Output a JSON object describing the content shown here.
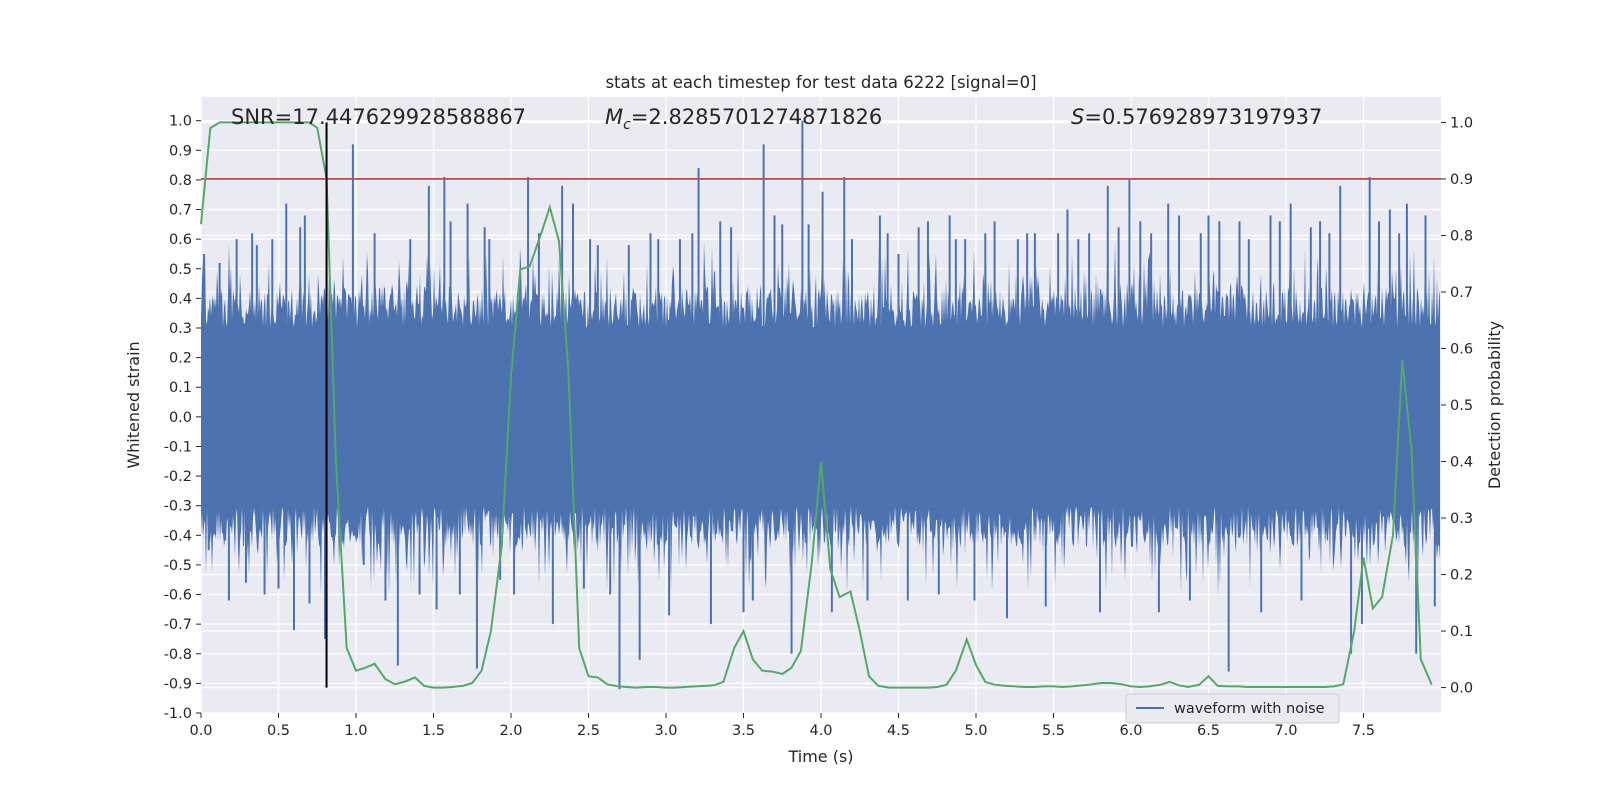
{
  "chart_data": {
    "type": "line",
    "title": "stats at each timestep for test data 6222 [signal=0]",
    "xlabel": "Time (s)",
    "ylabel": "Whitened strain",
    "y2label": "Detection probability",
    "xlim": [
      0,
      8
    ],
    "ylim": [
      -1.0,
      1.08
    ],
    "y2lim": [
      -0.045,
      1.045
    ],
    "xticks": [
      "0.0",
      "0.5",
      "1.0",
      "1.5",
      "2.0",
      "2.5",
      "3.0",
      "3.5",
      "4.0",
      "4.5",
      "5.0",
      "5.5",
      "6.0",
      "6.5",
      "7.0",
      "7.5"
    ],
    "yticks": [
      "-1.0",
      "-0.9",
      "-0.8",
      "-0.7",
      "-0.6",
      "-0.5",
      "-0.4",
      "-0.3",
      "-0.2",
      "-0.1",
      "0.0",
      "0.1",
      "0.2",
      "0.3",
      "0.4",
      "0.5",
      "0.6",
      "0.7",
      "0.8",
      "0.9",
      "1.0"
    ],
    "y2ticks": [
      "0.0",
      "0.1",
      "0.2",
      "0.3",
      "0.4",
      "0.5",
      "0.6",
      "0.7",
      "0.8",
      "0.9",
      "1.0"
    ],
    "grid": true,
    "legend_position": "lower-right",
    "annotations": {
      "snr": "SNR=17.447629928588867",
      "mc_symbol": "M",
      "mc_sub": "c",
      "mc_value": "=2.8285701274871826",
      "s_symbol": "S",
      "s_value": "=0.576928973197937"
    },
    "threshold_y2": 0.9,
    "marker_time": 0.81,
    "series": [
      {
        "name": "waveform with noise",
        "axis": "left",
        "color": "#4c72b0",
        "style": "noise",
        "sample_rate": 2048,
        "envelope": 0.45,
        "extremes_t": [
          0.02,
          0.05,
          0.12,
          0.18,
          0.23,
          0.29,
          0.33,
          0.36,
          0.41,
          0.46,
          0.5,
          0.55,
          0.6,
          0.64,
          0.67,
          0.7,
          0.8,
          0.98,
          1.05,
          1.12,
          1.19,
          1.27,
          1.35,
          1.41,
          1.47,
          1.52,
          1.57,
          1.61,
          1.67,
          1.72,
          1.78,
          1.83,
          1.86,
          1.93,
          2.02,
          2.11,
          2.18,
          2.27,
          2.33,
          2.4,
          2.47,
          2.51,
          2.56,
          2.64,
          2.7,
          2.76,
          2.83,
          2.9,
          2.95,
          3.02,
          3.09,
          3.17,
          3.21,
          3.29,
          3.35,
          3.42,
          3.5,
          3.56,
          3.63,
          3.7,
          3.75,
          3.81,
          3.88,
          3.92,
          4.01,
          4.07,
          4.15,
          4.2,
          4.3,
          4.38,
          4.43,
          4.5,
          4.56,
          4.63,
          4.69,
          4.76,
          4.83,
          4.87,
          4.93,
          4.99,
          5.06,
          5.12,
          5.2,
          5.27,
          5.33,
          5.38,
          5.45,
          5.53,
          5.59,
          5.66,
          5.73,
          5.8,
          5.85,
          5.92,
          5.99,
          6.06,
          6.13,
          6.18,
          6.24,
          6.31,
          6.38,
          6.45,
          6.5,
          6.57,
          6.63,
          6.7,
          6.76,
          6.84,
          6.9,
          6.96,
          7.03,
          7.1,
          7.16,
          7.22,
          7.28,
          7.35,
          7.42,
          7.49,
          7.54,
          7.6,
          7.67,
          7.73,
          7.78,
          7.84,
          7.9,
          7.96
        ],
        "extremes_v": [
          0.55,
          -0.45,
          0.52,
          -0.62,
          0.6,
          -0.56,
          0.62,
          0.58,
          -0.6,
          0.6,
          -0.58,
          0.72,
          -0.72,
          0.64,
          0.68,
          -0.63,
          -0.75,
          0.92,
          -0.5,
          0.62,
          -0.62,
          -0.84,
          0.6,
          -0.6,
          0.78,
          -0.65,
          0.81,
          0.66,
          -0.6,
          0.72,
          -0.85,
          0.64,
          0.6,
          -0.55,
          -0.6,
          0.81,
          0.62,
          -0.7,
          0.78,
          0.72,
          -0.58,
          0.6,
          0.58,
          -0.6,
          -0.92,
          0.58,
          -0.82,
          0.62,
          0.6,
          -0.67,
          0.6,
          0.62,
          0.84,
          -0.7,
          0.66,
          0.64,
          -0.66,
          -0.62,
          0.92,
          0.68,
          0.65,
          -0.8,
          1.0,
          0.65,
          0.76,
          -0.66,
          0.81,
          0.6,
          -0.62,
          0.68,
          0.62,
          0.55,
          -0.62,
          0.64,
          0.66,
          -0.6,
          0.68,
          0.6,
          0.6,
          -0.62,
          0.62,
          0.66,
          -0.68,
          0.6,
          0.62,
          0.62,
          -0.64,
          0.62,
          0.7,
          0.6,
          0.62,
          -0.66,
          0.78,
          0.64,
          0.8,
          0.66,
          0.62,
          -0.66,
          0.72,
          0.68,
          -0.62,
          0.62,
          0.68,
          0.66,
          -0.86,
          0.66,
          0.6,
          -0.66,
          0.68,
          0.66,
          0.72,
          -0.62,
          0.64,
          0.66,
          0.62,
          0.78,
          -0.8,
          -0.7,
          0.81,
          0.66,
          0.7,
          0.62,
          0.72,
          -0.8,
          0.68,
          -0.64
        ]
      },
      {
        "name": "",
        "axis": "right",
        "color": "#55a868",
        "t": [
          0.0,
          0.06,
          0.12,
          0.2,
          0.3,
          0.4,
          0.5,
          0.6,
          0.7,
          0.75,
          0.81,
          0.87,
          0.94,
          1.0,
          1.06,
          1.12,
          1.19,
          1.25,
          1.31,
          1.38,
          1.44,
          1.5,
          1.56,
          1.62,
          1.69,
          1.75,
          1.81,
          1.87,
          1.94,
          2.0,
          2.06,
          2.12,
          2.19,
          2.25,
          2.31,
          2.37,
          2.44,
          2.5,
          2.56,
          2.62,
          2.69,
          2.75,
          2.81,
          2.87,
          2.94,
          3.0,
          3.06,
          3.12,
          3.19,
          3.25,
          3.31,
          3.37,
          3.44,
          3.5,
          3.56,
          3.62,
          3.69,
          3.75,
          3.81,
          3.87,
          3.94,
          4.0,
          4.06,
          4.12,
          4.19,
          4.25,
          4.31,
          4.37,
          4.44,
          4.5,
          4.56,
          4.62,
          4.69,
          4.75,
          4.81,
          4.87,
          4.94,
          5.0,
          5.06,
          5.12,
          5.19,
          5.25,
          5.31,
          5.37,
          5.44,
          5.5,
          5.56,
          5.62,
          5.69,
          5.75,
          5.81,
          5.87,
          5.94,
          6.0,
          6.06,
          6.12,
          6.19,
          6.25,
          6.31,
          6.37,
          6.44,
          6.5,
          6.56,
          6.62,
          6.69,
          6.75,
          6.81,
          6.87,
          6.94,
          7.0,
          7.06,
          7.12,
          7.19,
          7.25,
          7.31,
          7.37,
          7.44,
          7.5,
          7.56,
          7.62,
          7.69,
          7.75,
          7.81,
          7.87,
          7.94
        ],
        "values": [
          0.82,
          0.99,
          1.0,
          1.0,
          1.0,
          1.0,
          1.0,
          1.0,
          1.0,
          0.99,
          0.9,
          0.4,
          0.07,
          0.03,
          0.035,
          0.042,
          0.015,
          0.006,
          0.01,
          0.018,
          0.003,
          0.0,
          0.0,
          0.001,
          0.003,
          0.008,
          0.03,
          0.1,
          0.25,
          0.55,
          0.74,
          0.745,
          0.8,
          0.85,
          0.79,
          0.56,
          0.07,
          0.02,
          0.018,
          0.006,
          0.002,
          0.001,
          0.0,
          0.001,
          0.001,
          0.0,
          0.0,
          0.001,
          0.002,
          0.003,
          0.004,
          0.01,
          0.07,
          0.1,
          0.05,
          0.03,
          0.028,
          0.024,
          0.035,
          0.065,
          0.22,
          0.4,
          0.21,
          0.16,
          0.17,
          0.1,
          0.02,
          0.003,
          0.0,
          0.0,
          0.0,
          0.0,
          0.0,
          0.001,
          0.005,
          0.03,
          0.085,
          0.04,
          0.01,
          0.005,
          0.003,
          0.002,
          0.001,
          0.001,
          0.002,
          0.002,
          0.001,
          0.002,
          0.004,
          0.006,
          0.008,
          0.008,
          0.006,
          0.002,
          0.001,
          0.002,
          0.005,
          0.01,
          0.004,
          0.001,
          0.005,
          0.02,
          0.003,
          0.002,
          0.002,
          0.001,
          0.001,
          0.001,
          0.001,
          0.001,
          0.001,
          0.001,
          0.001,
          0.001,
          0.002,
          0.006,
          0.1,
          0.23,
          0.14,
          0.16,
          0.27,
          0.58,
          0.42,
          0.05,
          0.005
        ]
      }
    ]
  },
  "legend": {
    "label": "waveform with noise"
  }
}
